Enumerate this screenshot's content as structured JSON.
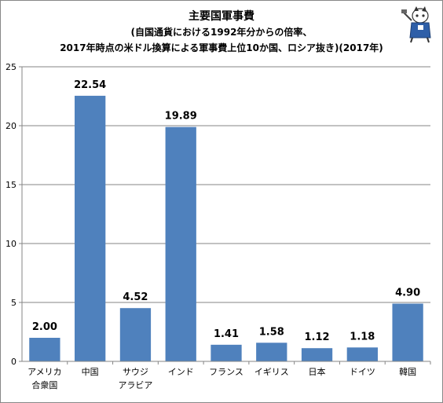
{
  "chart_data": {
    "type": "bar",
    "title": "主要国軍事費",
    "subtitle_lines": [
      "(自国通貨における1992年分からの倍率、",
      "2017年時点の米ドル換算による軍事費上位10か国、ロシア抜き)(2017年)"
    ],
    "categories": [
      [
        "アメリカ",
        "合衆国"
      ],
      [
        "中国"
      ],
      [
        "サウジ",
        "アラビア"
      ],
      [
        "インド"
      ],
      [
        "フランス"
      ],
      [
        "イギリス"
      ],
      [
        "日本"
      ],
      [
        "ドイツ"
      ],
      [
        "韓国"
      ]
    ],
    "values": [
      2.0,
      22.54,
      4.52,
      19.89,
      1.41,
      1.58,
      1.12,
      1.18,
      4.9
    ],
    "data_labels": [
      "2.00",
      "22.54",
      "4.52",
      "19.89",
      "1.41",
      "1.58",
      "1.12",
      "1.18",
      "4.90"
    ],
    "ylim": [
      0,
      25
    ],
    "yticks": [
      0,
      5,
      10,
      15,
      20,
      25
    ],
    "grid": true,
    "bar_color": "#4f81bd",
    "grid_color": "#868686"
  }
}
